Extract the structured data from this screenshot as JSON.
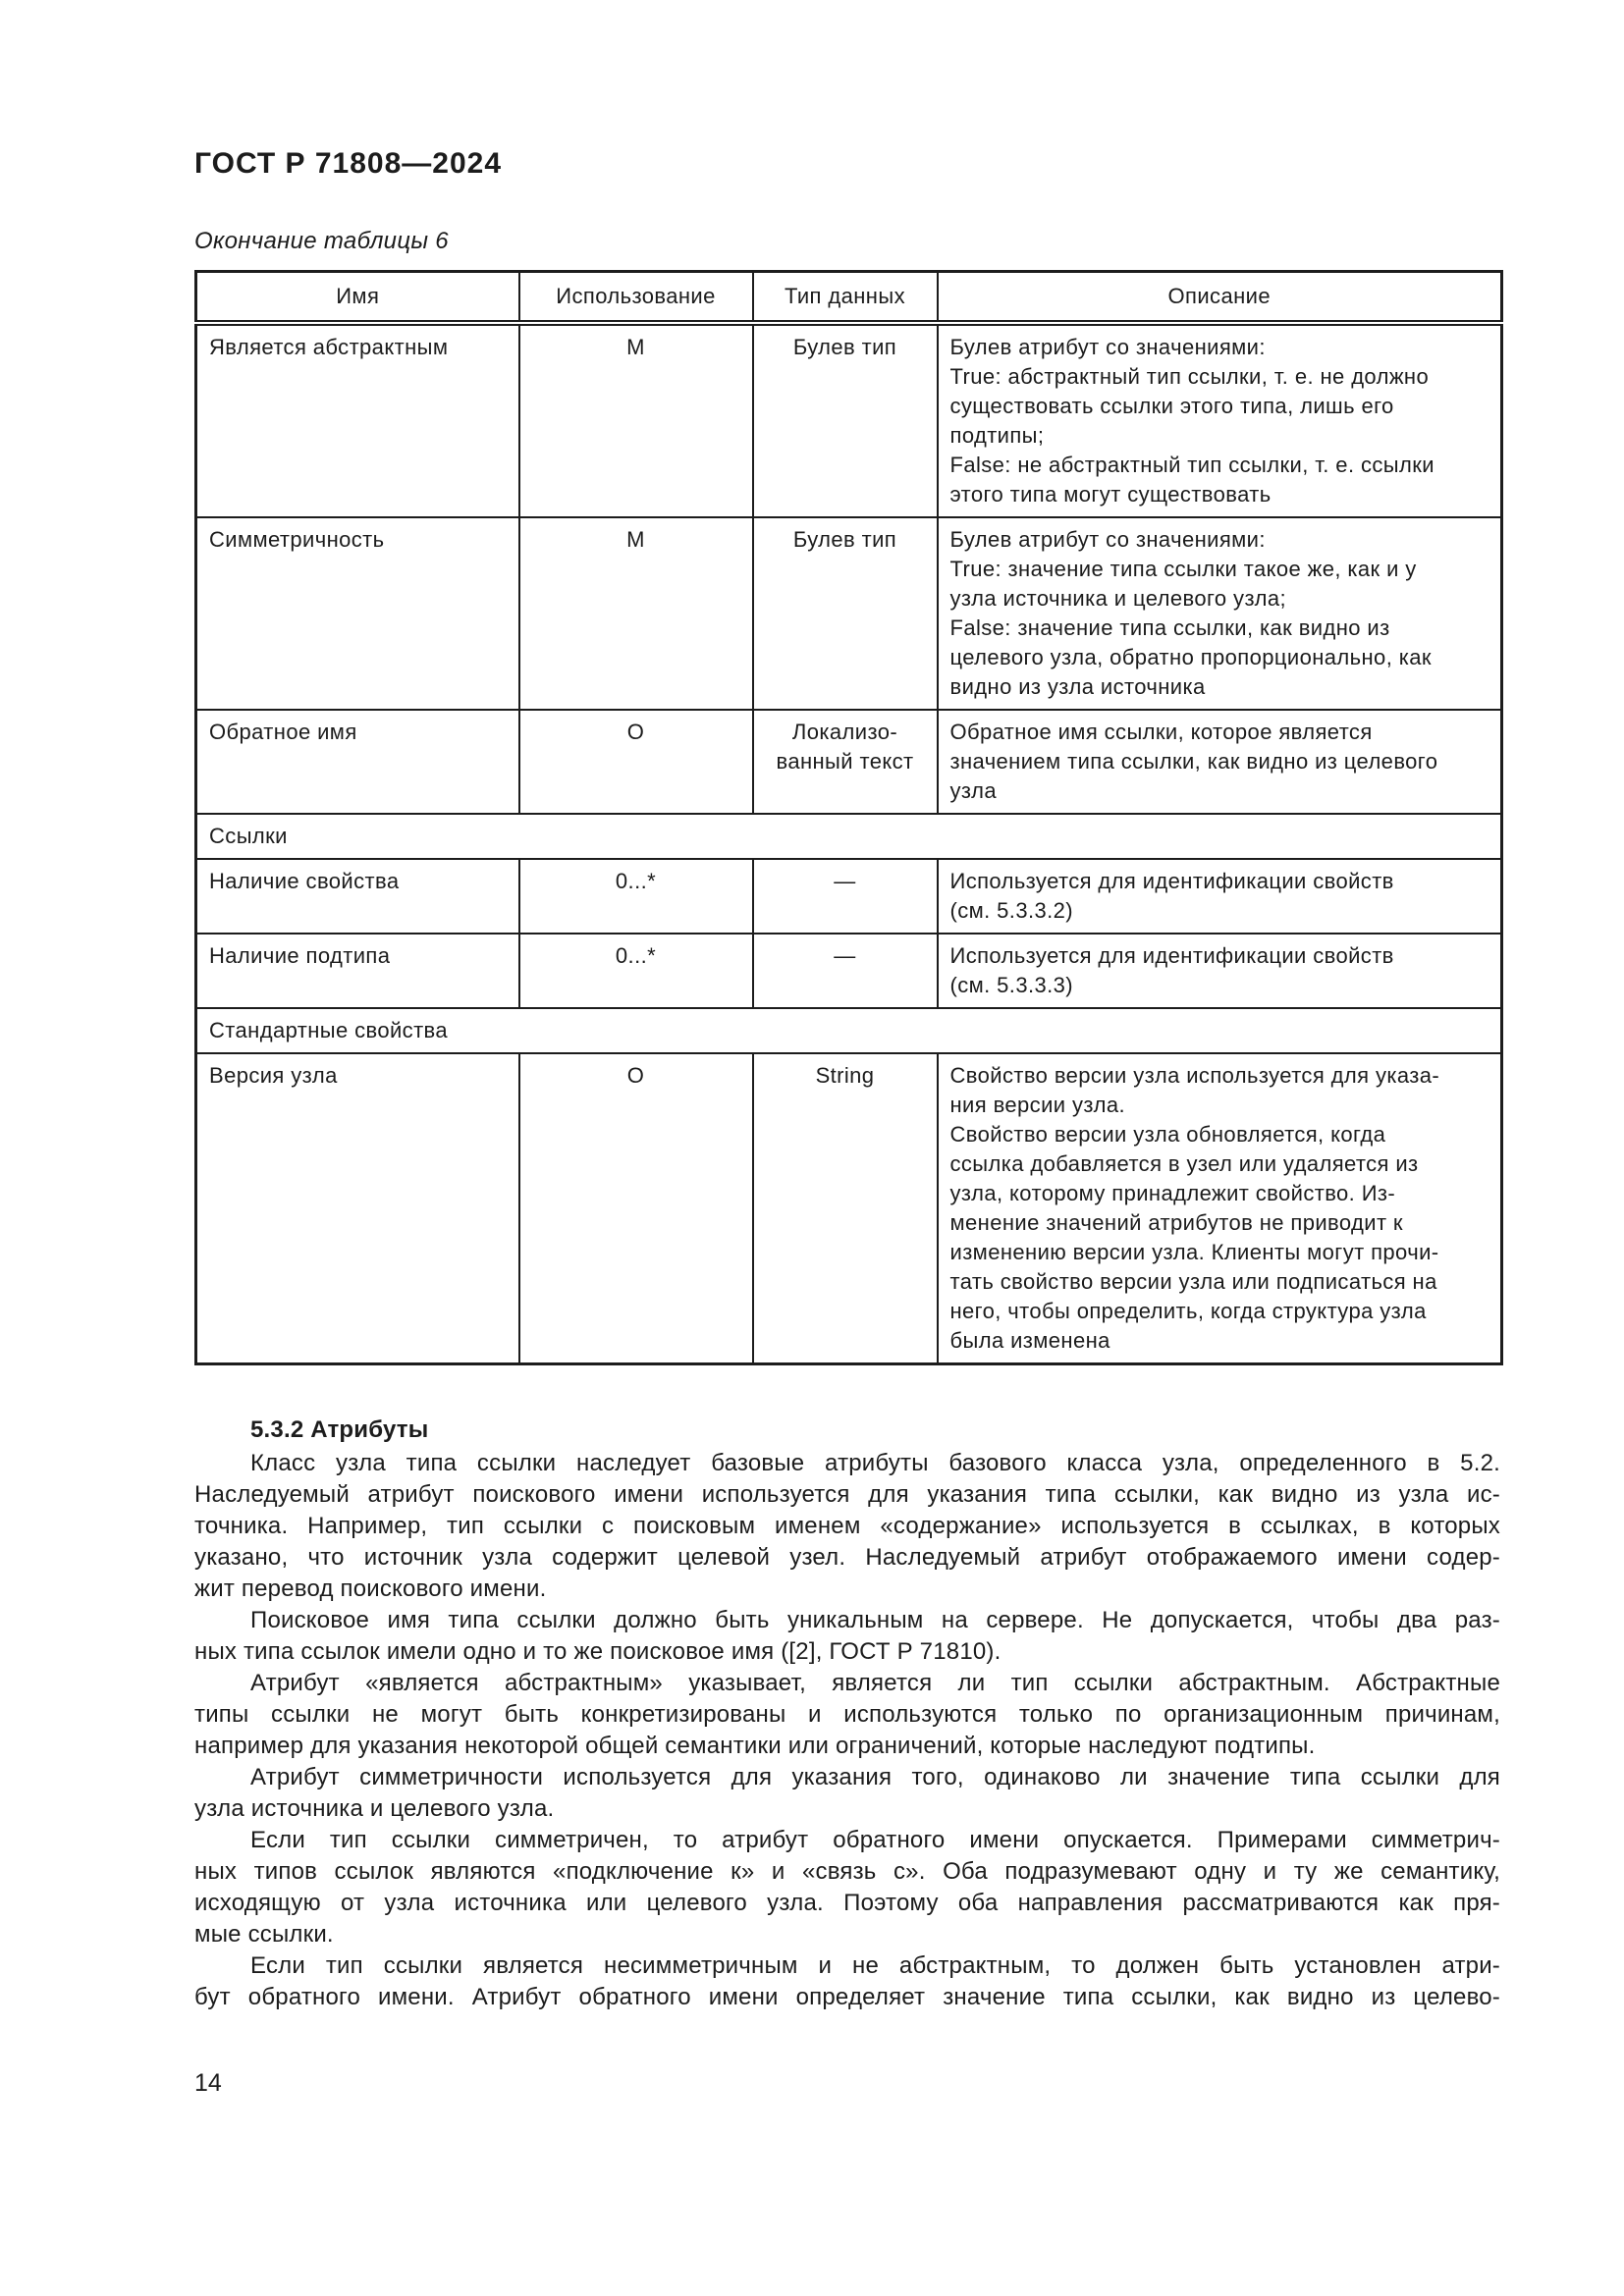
{
  "colors": {
    "text": "#1c1c1c",
    "border": "#1c1c1c",
    "background": "#ffffff"
  },
  "page": {
    "standard_number": "ГОСТ Р 71808—2024",
    "table_caption": "Окончание таблицы 6",
    "page_number": "14"
  },
  "table": {
    "columns": [
      "Имя",
      "Использование",
      "Тип данных",
      "Описание"
    ],
    "rows": [
      {
        "name": "Является абстрактным",
        "usage": "М",
        "type_lines": [
          "Булев тип"
        ],
        "desc_lines": [
          "Булев атрибут со значениями:",
          "True: абстрактный тип ссылки, т. е. не должно",
          "существовать ссылки этого типа, лишь его",
          "подтипы;",
          "False: не абстрактный тип ссылки, т. е. ссылки",
          "этого типа могут существовать"
        ]
      },
      {
        "name": "Симметричность",
        "usage": "М",
        "type_lines": [
          "Булев тип"
        ],
        "desc_lines": [
          "Булев атрибут со значениями:",
          "True: значение типа ссылки такое же, как и у",
          "узла источника и целевого узла;",
          "False: значение типа ссылки, как видно из",
          "целевого узла, обратно пропорционально, как",
          "видно из узла источника"
        ]
      },
      {
        "name": "Обратное имя",
        "usage": "О",
        "type_lines": [
          "Локализо-",
          "ванный текст"
        ],
        "desc_lines": [
          "Обратное имя ссылки, которое является",
          "значением типа ссылки, как видно из целевого",
          "узла"
        ]
      },
      {
        "section": "Ссылки"
      },
      {
        "name": "Наличие свойства",
        "usage": "0...*",
        "type_lines": [
          "—"
        ],
        "desc_lines": [
          "Используется для идентификации свойств",
          "(см. 5.3.3.2)"
        ]
      },
      {
        "name": "Наличие подтипа",
        "usage": "0...*",
        "type_lines": [
          "—"
        ],
        "desc_lines": [
          "Используется для идентификации свойств",
          "(см. 5.3.3.3)"
        ]
      },
      {
        "section": "Стандартные свойства"
      },
      {
        "name": "Версия узла",
        "usage": "О",
        "type_lines": [
          "String"
        ],
        "desc_lines": [
          "Свойство версии узла используется для указа-",
          "ния версии узла.",
          "Свойство версии узла обновляется, когда",
          "ссылка добавляется в узел или удаляется из",
          "узла, которому принадлежит свойство. Из-",
          "менение значений атрибутов не приводит к",
          "изменению версии узла. Клиенты могут прочи-",
          "тать свойство версии узла или подписаться на",
          "него, чтобы определить, когда структура узла",
          "была изменена"
        ]
      }
    ]
  },
  "content": {
    "heading": "5.3.2 Атрибуты",
    "paragraphs": [
      {
        "lines": [
          "Класс узла типа ссылки наследует базовые атрибуты базового класса узла, определенного в 5.2.",
          "Наследуемый атрибут поискового имени используется для указания типа ссылки, как видно из узла ис-",
          "точника. Например, тип ссылки с поисковым именем «содержание» используется в ссылках, в которых",
          "указано, что источник узла содержит целевой узел. Наследуемый атрибут отображаемого имени содер-",
          "жит перевод поискового имени."
        ]
      },
      {
        "lines": [
          "Поисковое имя типа ссылки должно быть уникальным на сервере. Не допускается, чтобы два раз-",
          "ных типа ссылок имели одно и то же поисковое имя ([2], ГОСТ Р 71810)."
        ]
      },
      {
        "lines": [
          "Атрибут «является абстрактным» указывает, является ли тип ссылки абстрактным. Абстрактные",
          "типы ссылки не могут быть конкретизированы и используются только по организационным причинам,",
          "например для указания некоторой общей семантики или ограничений, которые наследуют подтипы."
        ]
      },
      {
        "lines": [
          "Атрибут симметричности используется для указания того, одинаково ли значение типа ссылки для",
          "узла источника и целевого узла."
        ]
      },
      {
        "lines": [
          "Если тип ссылки симметричен, то атрибут обратного имени опускается. Примерами симметрич-",
          "ных типов ссылок являются «подключение к» и «связь с». Оба подразумевают одну и ту же семантику,",
          "исходящую от узла источника или целевого узла. Поэтому оба направления рассматриваются как пря-",
          "мые ссылки."
        ]
      },
      {
        "lines": [
          "Если тип ссылки является несимметричным и не абстрактным, то должен быть установлен атри-",
          "бут обратного имени. Атрибут обратного имени определяет значение типа ссылки, как видно из целево-"
        ],
        "justify_last": true
      }
    ]
  }
}
